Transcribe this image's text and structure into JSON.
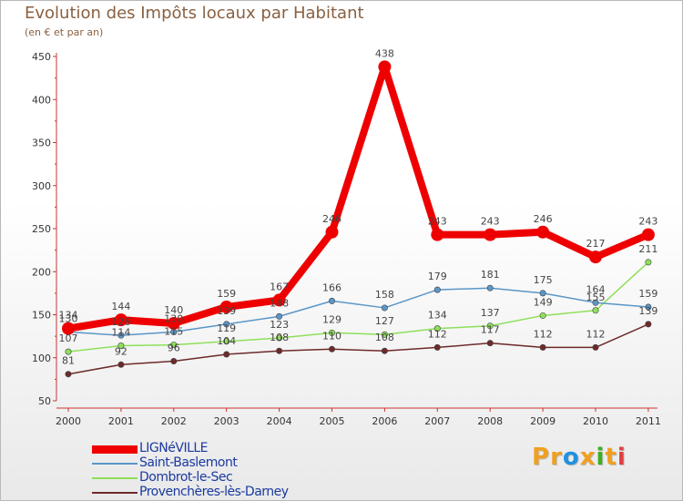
{
  "chart_data": {
    "type": "line",
    "title": "Evolution des Impôts locaux par Habitant",
    "subtitle": "(en € et par an)",
    "xlabel": "",
    "ylabel": "",
    "categories": [
      "2000",
      "2001",
      "2002",
      "2003",
      "2004",
      "2005",
      "2006",
      "2007",
      "2008",
      "2009",
      "2010",
      "2011"
    ],
    "ylim": [
      50,
      450
    ],
    "yticks": [
      50,
      100,
      150,
      200,
      250,
      300,
      350,
      400,
      450
    ],
    "grid": false,
    "legend_position": "bottom-left",
    "series": [
      {
        "name": "LIGNéVILLE",
        "color": "#ee0000",
        "values": [
          134,
          144,
          140,
          159,
          167,
          246,
          438,
          243,
          243,
          246,
          217,
          243
        ]
      },
      {
        "name": "Saint-Baslemont",
        "color": "#5a96c8",
        "values": [
          130,
          126,
          130,
          139,
          148,
          166,
          158,
          179,
          181,
          175,
          164,
          159
        ]
      },
      {
        "name": "Dombrot-le-Sec",
        "color": "#8ee05a",
        "values": [
          107,
          114,
          115,
          119,
          123,
          129,
          127,
          134,
          137,
          149,
          155,
          211
        ]
      },
      {
        "name": "Provenchères-lès-Darney",
        "color": "#6e2a2a",
        "values": [
          81,
          92,
          96,
          104,
          108,
          110,
          108,
          112,
          117,
          112,
          112,
          139
        ]
      }
    ]
  },
  "logo": {
    "letters": [
      "P",
      "r",
      "o",
      "x",
      "i",
      "t",
      "i"
    ],
    "colors": [
      "#f0a020",
      "#f0a020",
      "#2090e0",
      "#f0a020",
      "#3ab020",
      "#f0a020",
      "#e04040"
    ]
  }
}
